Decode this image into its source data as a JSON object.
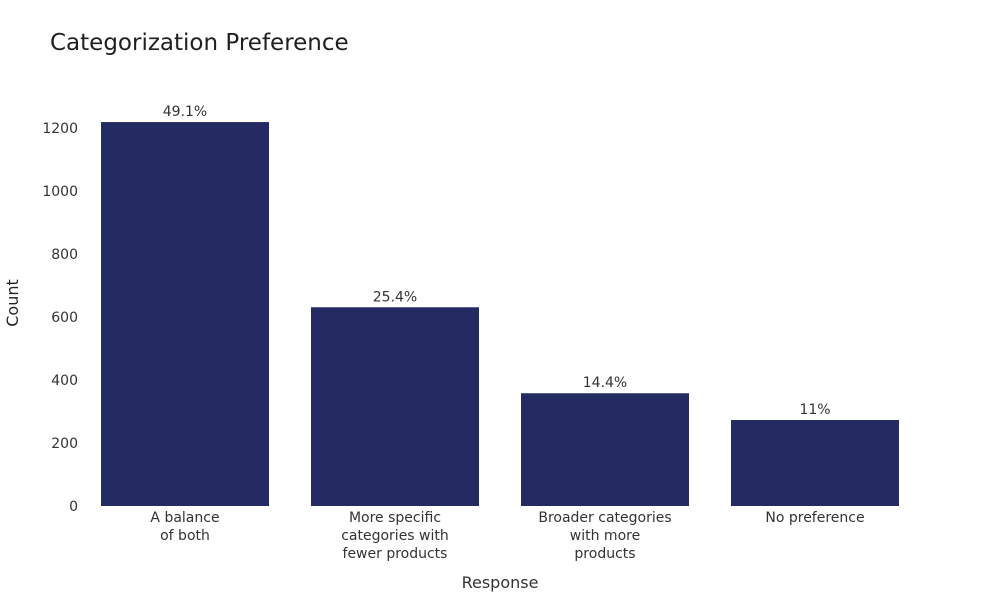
{
  "chart_data": {
    "type": "bar",
    "title": "Categorization Preference",
    "xlabel": "Response",
    "ylabel": "Count",
    "categories": [
      [
        "A balance",
        "of both"
      ],
      [
        "More specific",
        "categories with",
        "fewer products"
      ],
      [
        "Broader categories",
        "with more",
        "products"
      ],
      [
        "No preference"
      ]
    ],
    "values": [
      1219,
      631,
      358,
      273
    ],
    "data_labels": [
      "49.1%",
      "25.4%",
      "14.4%",
      "11%"
    ],
    "yticks": [
      0,
      200,
      400,
      600,
      800,
      1000,
      1200
    ],
    "ylim": [
      0,
      1270
    ],
    "grid": false,
    "bar_color": "#242a62"
  }
}
